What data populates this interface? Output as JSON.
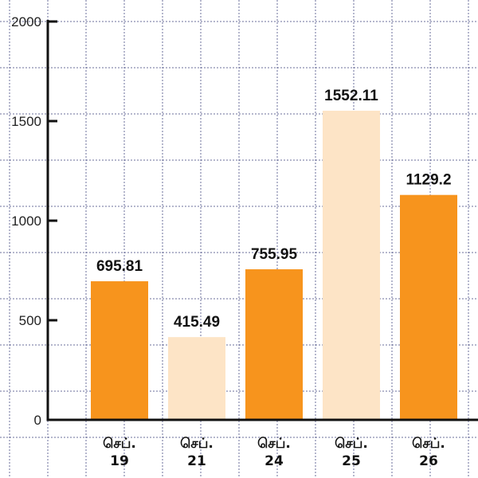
{
  "chart_data": {
    "type": "bar",
    "categories": [
      [
        "செப்.",
        "19"
      ],
      [
        "செப்.",
        "21"
      ],
      [
        "செப்.",
        "24"
      ],
      [
        "செப்.",
        "25"
      ],
      [
        "செப்.",
        "26"
      ]
    ],
    "values": [
      695.81,
      415.49,
      755.95,
      1552.11,
      1129.2
    ],
    "value_labels": [
      "695.81",
      "415.49",
      "755.95",
      "1552.11",
      "1129.2"
    ],
    "bar_colors": [
      "#F7941D",
      "#FDE4C6",
      "#F7941D",
      "#FDE4C6",
      "#F7941D"
    ],
    "yticks": [
      0,
      500,
      1000,
      1500,
      2000
    ],
    "ylim": [
      0,
      2000
    ],
    "grid": true,
    "title": "",
    "xlabel": "",
    "ylabel": ""
  }
}
